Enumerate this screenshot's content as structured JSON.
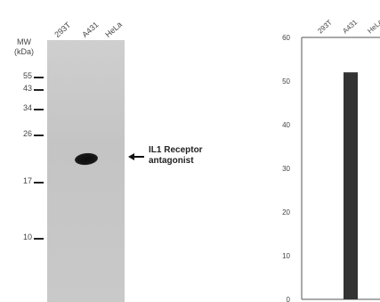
{
  "blot": {
    "mw_title": "MW",
    "mw_unit": "(kDa)",
    "lanes": [
      "293T",
      "A431",
      "HeLa"
    ],
    "markers": [
      {
        "label": "55"
      },
      {
        "label": "43"
      },
      {
        "label": "34"
      },
      {
        "label": "26"
      },
      {
        "label": "17"
      },
      {
        "label": "10"
      }
    ],
    "annotation_line1": "IL1 Receptor",
    "annotation_line2": "antagonist"
  },
  "chart_data": {
    "type": "bar",
    "categories": [
      "293T",
      "A431",
      "HeLa"
    ],
    "values": [
      0,
      52,
      0
    ],
    "ylim": [
      0,
      60
    ],
    "yticks": [
      0,
      10,
      20,
      30,
      40,
      50,
      60
    ],
    "title": "",
    "xlabel": "",
    "ylabel": "",
    "grid": false,
    "bar_color": "#333333"
  }
}
